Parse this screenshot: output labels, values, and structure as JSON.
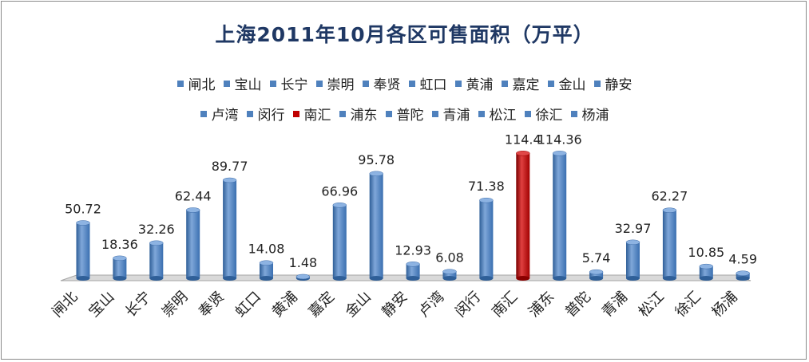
{
  "chart_data": {
    "type": "bar",
    "title": "上海2011年10月各区可售面积（万平）",
    "categories": [
      "闸北",
      "宝山",
      "长宁",
      "崇明",
      "奉贤",
      "虹口",
      "黄浦",
      "嘉定",
      "金山",
      "静安",
      "卢湾",
      "闵行",
      "南汇",
      "浦东",
      "普陀",
      "青浦",
      "松江",
      "徐汇",
      "杨浦"
    ],
    "values": [
      50.72,
      18.36,
      32.26,
      62.44,
      89.77,
      14.08,
      1.48,
      66.96,
      95.78,
      12.93,
      6.08,
      71.38,
      114.4,
      114.36,
      5.74,
      32.97,
      62.27,
      10.85,
      4.59
    ],
    "value_labels": [
      "50.72",
      "18.36",
      "32.26",
      "62.44",
      "89.77",
      "14.08",
      "1.48",
      "66.96",
      "95.78",
      "12.93",
      "6.08",
      "71.38",
      "114.4",
      "114.36",
      "5.74",
      "32.97",
      "62.27",
      "10.85",
      "4.59"
    ],
    "highlight_index": 12,
    "colors": {
      "default": "#4f81bd",
      "highlight": "#c00000",
      "floor": "#d9d9d9"
    },
    "legend_placement": "top",
    "grid": false,
    "ylim": [
      0,
      120
    ]
  }
}
